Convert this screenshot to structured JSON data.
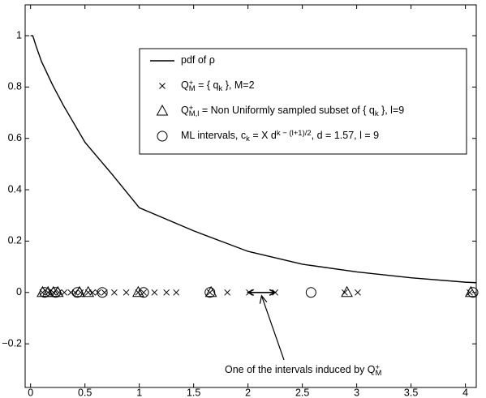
{
  "chart_data": {
    "type": "line",
    "xlim": [
      -0.05,
      4.1
    ],
    "ylim": [
      -0.37,
      1.12
    ],
    "xticks": [
      0,
      0.5,
      1,
      1.5,
      2,
      2.5,
      3,
      3.5,
      4
    ],
    "yticks": [
      {
        "value": -0.2,
        "label": "−0.2"
      },
      0,
      0.2,
      0.4,
      0.6,
      0.8,
      1
    ],
    "grid": false,
    "legend": "north-east",
    "series": [
      {
        "name": [
          {
            "text": "pdf of ρ"
          }
        ],
        "marker": "line",
        "color": "#000000",
        "x": [
          0,
          0.02,
          0.05,
          0.1,
          0.2,
          0.3,
          0.5,
          0.75,
          1,
          1.5,
          2,
          2.5,
          3,
          3.5,
          4,
          4.1
        ],
        "values": [
          1,
          1,
          0.96,
          0.9,
          0.81,
          0.73,
          0.585,
          0.46,
          0.33,
          0.24,
          0.16,
          0.11,
          0.08,
          0.057,
          0.04,
          0.038
        ]
      },
      {
        "name": [
          {
            "text": "Q"
          },
          {
            "text": "+",
            "pos": "sup"
          },
          {
            "text": "M",
            "pos": "sub"
          },
          {
            "text": " = { q"
          },
          {
            "text": "k",
            "pos": "sub"
          },
          {
            "text": " },  M=2"
          }
        ],
        "marker": "x",
        "color": "#000000",
        "x": [
          0.11,
          0.16,
          0.21,
          0.26,
          0.31,
          0.37,
          0.41,
          0.46,
          0.53,
          0.57,
          0.62,
          0.68,
          0.77,
          0.88,
          0.99,
          1.04,
          1.14,
          1.25,
          1.34,
          1.65,
          1.81,
          2.01,
          2.25,
          2.89,
          3.01,
          4.04
        ],
        "values": [
          0,
          0,
          0,
          0,
          0,
          0,
          0,
          0,
          0,
          0,
          0,
          0,
          0,
          0,
          0,
          0,
          0,
          0,
          0,
          0,
          0,
          0,
          0,
          0,
          0,
          0
        ]
      },
      {
        "name": [
          {
            "text": "Q"
          },
          {
            "text": "+",
            "pos": "sup"
          },
          {
            "text": "M,l",
            "pos": "sub"
          },
          {
            "text": " = Non Uniformly sampled subset of { q"
          },
          {
            "text": "k",
            "pos": "sub"
          },
          {
            "text": " }, l=9"
          }
        ],
        "marker": "triangle",
        "color": "#000000",
        "x": [
          0.11,
          0.16,
          0.21,
          0.25,
          0.45,
          0.53,
          0.99,
          1.66,
          2.91,
          4.05
        ],
        "values": [
          0,
          0,
          0,
          0,
          0,
          0,
          0,
          0,
          0,
          0
        ]
      },
      {
        "name": [
          {
            "text": "ML intervals, c"
          },
          {
            "text": "k",
            "pos": "sub"
          },
          {
            "text": " = X d"
          },
          {
            "text": "k − (l+1)/2",
            "pos": "sup"
          },
          {
            "text": ", d = 1.57, l = 9"
          }
        ],
        "marker": "circle",
        "color": "#000000",
        "x": [
          0.13,
          0.23,
          0.43,
          0.66,
          1.04,
          1.65,
          2.58,
          4.07
        ],
        "values": [
          0,
          0,
          0,
          0,
          0,
          0,
          0,
          0
        ]
      }
    ],
    "annotation": {
      "text": [
        {
          "text": "One of the intervals induced by Q"
        },
        {
          "text": "+",
          "pos": "sup"
        },
        {
          "text": "M",
          "pos": "sub"
        }
      ],
      "interval": [
        2.0,
        2.25
      ]
    }
  }
}
